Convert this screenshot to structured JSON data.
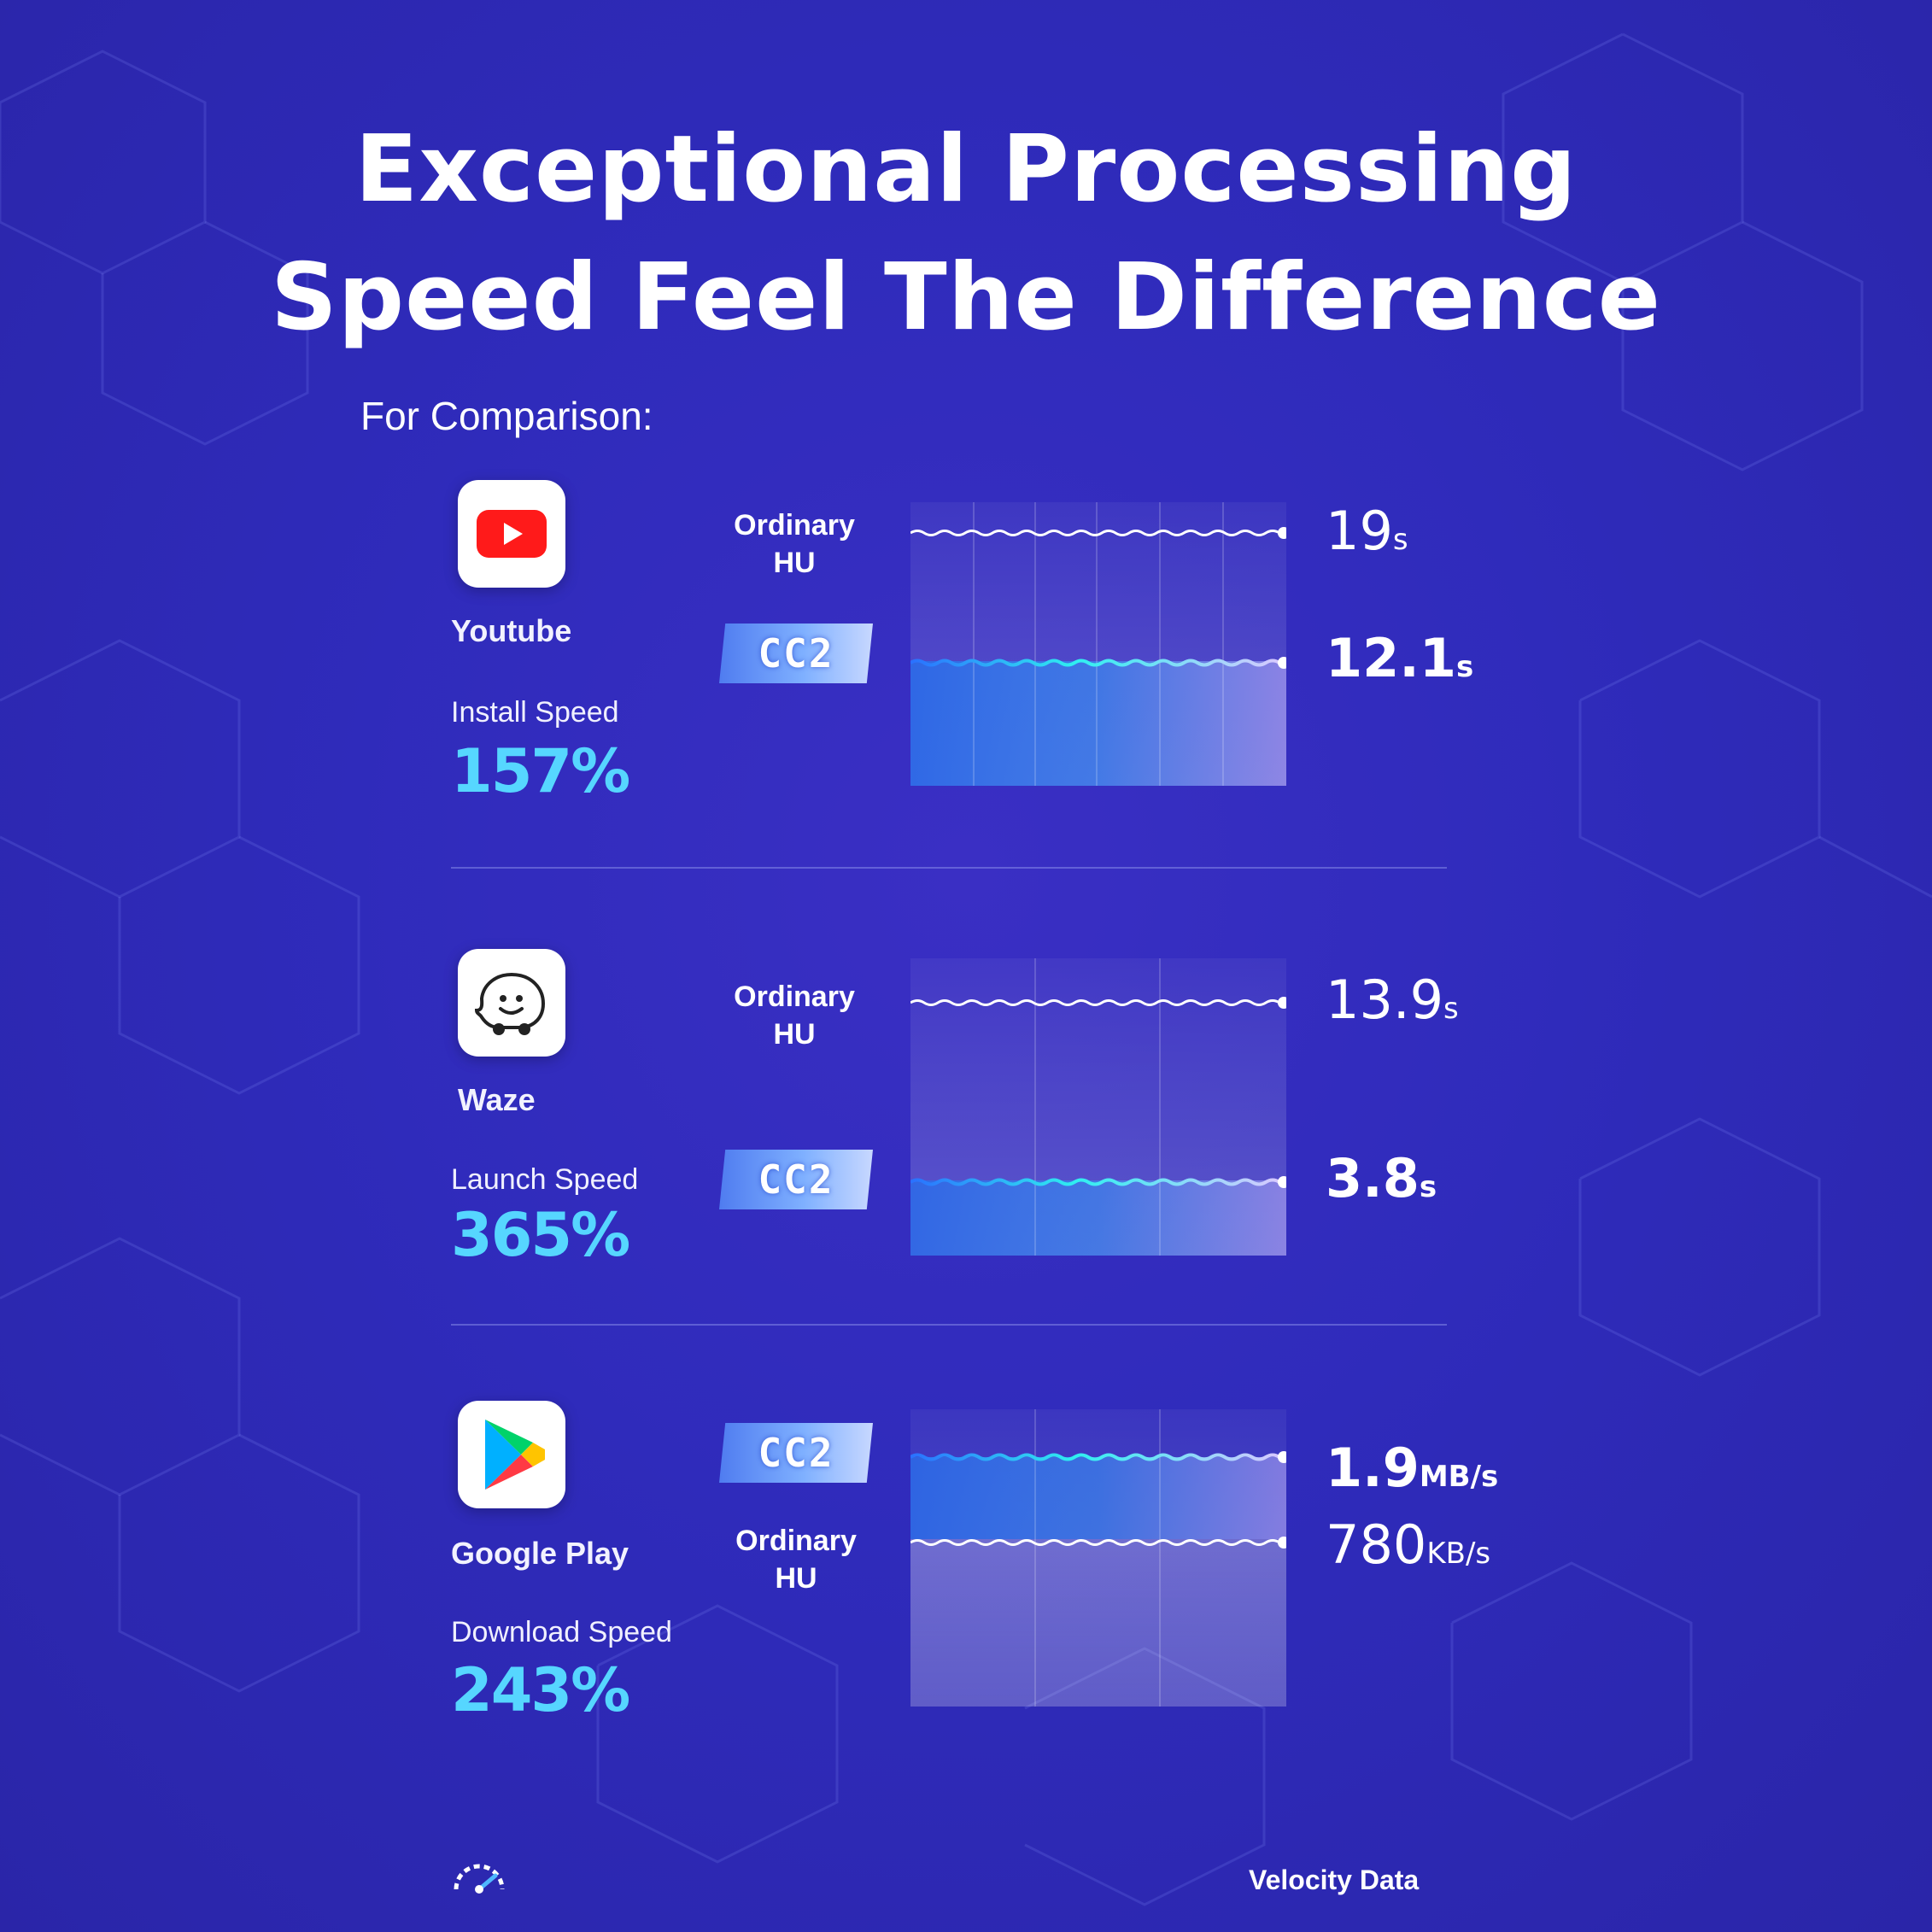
{
  "header": {
    "title_line1": "Exceptional Processing",
    "title_line2": "Speed Feel The Difference",
    "subtitle": "For Comparison:"
  },
  "comparisons": [
    {
      "app_name": "Youtube",
      "icon": "youtube-icon",
      "metric_label": "Install Speed",
      "metric_value": "157%",
      "ordinary_label_1": "Ordinary",
      "ordinary_label_2": "HU",
      "cc2_label": "CC2",
      "ordinary_value": "19",
      "ordinary_unit": "s",
      "cc2_value": "12.1",
      "cc2_unit": "s"
    },
    {
      "app_name": "Waze",
      "icon": "waze-icon",
      "metric_label": "Launch Speed",
      "metric_value": "365%",
      "ordinary_label_1": "Ordinary",
      "ordinary_label_2": "HU",
      "cc2_label": "CC2",
      "ordinary_value": "13.9",
      "ordinary_unit": "s",
      "cc2_value": "3.8",
      "cc2_unit": "s"
    },
    {
      "app_name": "Google Play",
      "icon": "google-play-icon",
      "metric_label": "Download Speed",
      "metric_value": "243%",
      "ordinary_label_1": "Ordinary",
      "ordinary_label_2": "HU",
      "cc2_label": "CC2",
      "cc2_value": "1.9",
      "cc2_unit": "MB/s",
      "ordinary_value": "780",
      "ordinary_unit": "KB/s"
    }
  ],
  "footer": {
    "icon": "speedometer-icon",
    "label": "Velocity Data"
  },
  "colors": {
    "background": "#2f2bbb",
    "accent_cyan": "#56d6ff",
    "badge_blue": "#6f9cff"
  }
}
